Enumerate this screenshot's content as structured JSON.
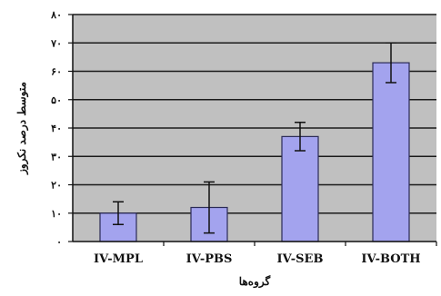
{
  "chart_data": {
    "type": "bar",
    "categories": [
      "IV-MPL",
      "IV-PBS",
      "IV-SEB",
      "IV-BOTH"
    ],
    "values": [
      10,
      12,
      37,
      63
    ],
    "errors": [
      4,
      9,
      5,
      7
    ],
    "ylim": [
      0,
      80
    ],
    "yticks": [
      0,
      10,
      20,
      30,
      40,
      50,
      60,
      70,
      80
    ],
    "ytick_labels": [
      "۰",
      "۱۰",
      "۲۰",
      "۳۰",
      "۴۰",
      "۵۰",
      "۶۰",
      "۷۰",
      "۸۰"
    ],
    "xlabel": "گروه‌ها",
    "ylabel": "متوسط درصد نکروز",
    "grid": true,
    "colors": {
      "bar_fill": "#a3a3ee",
      "bar_stroke": "#2a2a55",
      "plot_bg": "#c0c0c0",
      "grid": "#1a1a1a",
      "error_bar": "#111111"
    }
  }
}
